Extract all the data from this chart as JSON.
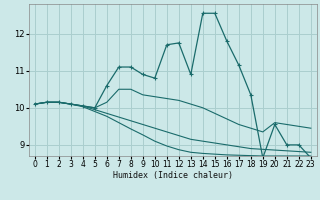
{
  "xlabel": "Humidex (Indice chaleur)",
  "bg_color": "#cce8e8",
  "line_color": "#1a6b6b",
  "grid_color": "#aacece",
  "xlim": [
    -0.5,
    23.5
  ],
  "ylim": [
    8.7,
    12.8
  ],
  "yticks": [
    9,
    10,
    11,
    12
  ],
  "xticks": [
    0,
    1,
    2,
    3,
    4,
    5,
    6,
    7,
    8,
    9,
    10,
    11,
    12,
    13,
    14,
    15,
    16,
    17,
    18,
    19,
    20,
    21,
    22,
    23
  ],
  "series": [
    {
      "x": [
        0,
        1,
        2,
        3,
        4,
        5,
        6,
        7,
        8,
        9,
        10,
        11,
        12,
        13,
        14,
        15,
        16,
        17,
        18,
        19,
        20,
        21,
        22,
        23
      ],
      "y": [
        10.1,
        10.15,
        10.15,
        10.1,
        10.05,
        10.0,
        10.6,
        11.1,
        11.1,
        10.9,
        10.8,
        11.7,
        11.75,
        10.9,
        12.55,
        12.55,
        11.8,
        11.15,
        10.35,
        8.65,
        9.55,
        9.0,
        9.0,
        8.65
      ],
      "marker": true
    },
    {
      "x": [
        0,
        1,
        2,
        3,
        4,
        5,
        6,
        7,
        8,
        9,
        10,
        11,
        12,
        13,
        14,
        15,
        16,
        17,
        18,
        19,
        20,
        21,
        22,
        23
      ],
      "y": [
        10.1,
        10.15,
        10.15,
        10.1,
        10.05,
        10.0,
        10.15,
        10.5,
        10.5,
        10.35,
        10.3,
        10.25,
        10.2,
        10.1,
        10.0,
        9.85,
        9.7,
        9.55,
        9.45,
        9.35,
        9.6,
        9.55,
        9.5,
        9.45
      ],
      "marker": false
    },
    {
      "x": [
        0,
        1,
        2,
        3,
        4,
        5,
        6,
        7,
        8,
        9,
        10,
        11,
        12,
        13,
        14,
        15,
        16,
        17,
        18,
        19,
        20,
        21,
        22,
        23
      ],
      "y": [
        10.1,
        10.15,
        10.15,
        10.1,
        10.05,
        9.95,
        9.85,
        9.75,
        9.65,
        9.55,
        9.45,
        9.35,
        9.25,
        9.15,
        9.1,
        9.05,
        9.0,
        8.95,
        8.9,
        8.88,
        8.86,
        8.84,
        8.82,
        8.8
      ],
      "marker": false
    },
    {
      "x": [
        0,
        1,
        2,
        3,
        4,
        5,
        6,
        7,
        8,
        9,
        10,
        11,
        12,
        13,
        14,
        15,
        16,
        17,
        18,
        19,
        20,
        21,
        22,
        23
      ],
      "y": [
        10.1,
        10.15,
        10.15,
        10.1,
        10.03,
        9.9,
        9.77,
        9.6,
        9.43,
        9.27,
        9.1,
        8.97,
        8.87,
        8.8,
        8.77,
        8.75,
        8.73,
        8.72,
        8.71,
        8.7,
        8.7,
        8.7,
        8.7,
        8.7
      ],
      "marker": false
    }
  ]
}
